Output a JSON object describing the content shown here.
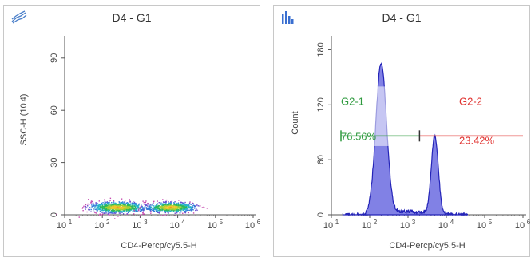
{
  "chart_data": [
    {
      "type": "scatter",
      "title": "D4 - G1",
      "xlabel": "CD4-Percp/cy5.5-H",
      "ylabel": "SSC-H (10^4)",
      "ylabel_base": "SSC-H (10",
      "ylabel_exp": "4",
      "ylabel_close": ")",
      "x_scale": "log",
      "xlim": [
        1,
        6
      ],
      "ylim": [
        0,
        100
      ],
      "x_ticks": [
        {
          "base": "10",
          "exp": "1",
          "value": 1
        },
        {
          "base": "10",
          "exp": "2",
          "value": 2
        },
        {
          "base": "10",
          "exp": "3",
          "value": 3
        },
        {
          "base": "10",
          "exp": "4",
          "value": 4
        },
        {
          "base": "10",
          "exp": "5",
          "value": 5
        },
        {
          "base": "10",
          "exp": "6",
          "value": 6
        }
      ],
      "y_ticks": [
        "0",
        "30",
        "60",
        "90"
      ],
      "y_tick_values": [
        0,
        30,
        60,
        90
      ],
      "clusters": [
        {
          "x_center": 2.4,
          "y_center": 4.5,
          "x_spread": 0.38,
          "y_spread": 1.6
        },
        {
          "x_center": 3.8,
          "y_center": 4.5,
          "x_spread": 0.33,
          "y_spread": 1.5
        }
      ],
      "grid": false
    },
    {
      "type": "histogram",
      "title": "D4 - G1",
      "xlabel": "CD4-Percp/cy5.5-H",
      "ylabel": "Count",
      "x_scale": "log",
      "xlim": [
        1,
        6
      ],
      "ylim": [
        0,
        190
      ],
      "x_ticks": [
        {
          "base": "10",
          "exp": "1",
          "value": 1
        },
        {
          "base": "10",
          "exp": "2",
          "value": 2
        },
        {
          "base": "10",
          "exp": "3",
          "value": 3
        },
        {
          "base": "10",
          "exp": "4",
          "value": 4
        },
        {
          "base": "10",
          "exp": "5",
          "value": 5
        },
        {
          "base": "10",
          "exp": "6",
          "value": 6
        }
      ],
      "y_ticks": [
        "0",
        "60",
        "120",
        "180"
      ],
      "y_tick_values": [
        0,
        60,
        120,
        180
      ],
      "peaks": [
        {
          "x_center": 2.3,
          "height": 165,
          "width": 0.14
        },
        {
          "x_center": 3.7,
          "height": 86,
          "width": 0.09
        }
      ],
      "gates": [
        {
          "name": "G2-1",
          "percent": "76.56%",
          "x_range": [
            1.25,
            3.3
          ],
          "color": "#2e9a3e"
        },
        {
          "name": "G2-2",
          "percent": "23.42%",
          "x_range": [
            3.3,
            6.0
          ],
          "color": "#e0322f"
        }
      ],
      "gate_y": 86,
      "fill_color": "#6b6be0",
      "line_color": "#2424b8",
      "grid": false
    }
  ]
}
